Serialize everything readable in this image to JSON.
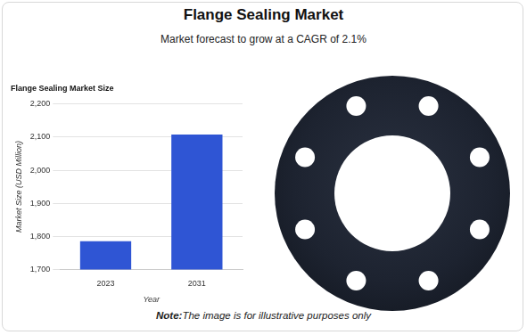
{
  "header": {
    "title": "Flange Sealing Market",
    "subtitle": "Market forecast to grow at a CAGR of 2.1%"
  },
  "note": {
    "label": "Note:",
    "text": "The image is for illustrative purposes only"
  },
  "chart_data": {
    "type": "bar",
    "title": "Flange Sealing Market Size",
    "x_label": "Year",
    "y_label": "Market Size (USD Million)",
    "categories": [
      "2023",
      "2031"
    ],
    "values": [
      1785,
      2108
    ],
    "color": "#2f55d4",
    "ylim": [
      1700,
      2200
    ],
    "yticks": [
      {
        "value": 1700,
        "label": "1,700"
      },
      {
        "value": 1800,
        "label": "1,800"
      },
      {
        "value": 1900,
        "label": "1,900"
      },
      {
        "value": 2000,
        "label": "2,000"
      },
      {
        "value": 2100,
        "label": "2,100"
      },
      {
        "value": 2200,
        "label": "2,200"
      }
    ],
    "grid": true
  }
}
